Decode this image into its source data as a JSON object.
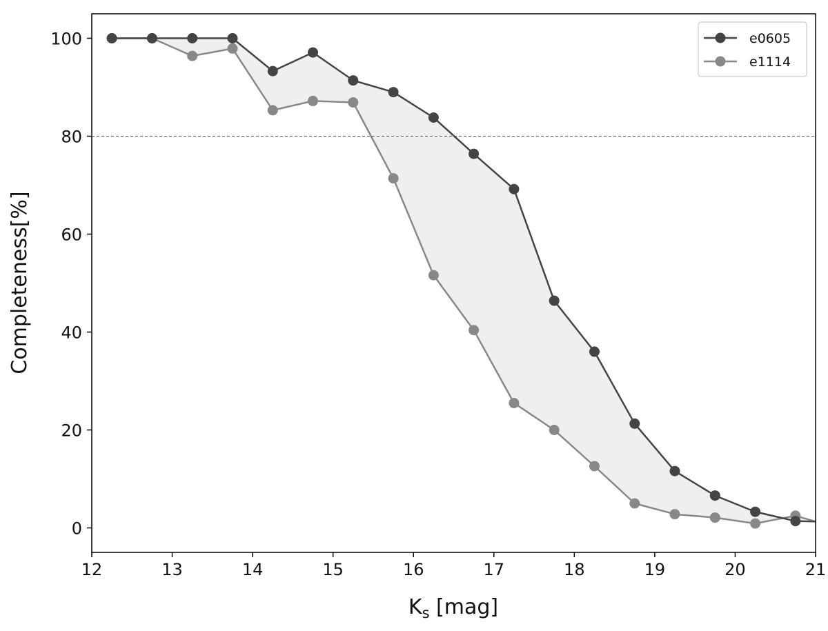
{
  "chart_data": {
    "type": "line",
    "title": "",
    "xlabel_main": "K",
    "xlabel_sub": "s",
    "xlabel_unit": " [mag]",
    "ylabel": "Completeness[%]",
    "xlim": [
      12,
      21
    ],
    "ylim": [
      -5,
      105
    ],
    "xticks": [
      12,
      13,
      14,
      15,
      16,
      17,
      18,
      19,
      20,
      21
    ],
    "yticks": [
      0,
      20,
      40,
      60,
      80,
      100
    ],
    "reference_line": {
      "y": 80,
      "style": "dashed"
    },
    "x": [
      12.25,
      12.75,
      13.25,
      13.75,
      14.25,
      14.75,
      15.25,
      15.75,
      16.25,
      16.75,
      17.25,
      17.75,
      18.25,
      18.75,
      19.25,
      19.75,
      20.25,
      20.75,
      21.0
    ],
    "series": [
      {
        "name": "e0605",
        "color": "#444444",
        "values": [
          100,
          100,
          100,
          100,
          93.3,
          97.1,
          91.4,
          89.0,
          83.8,
          76.4,
          69.2,
          46.4,
          36.0,
          21.3,
          11.6,
          6.6,
          3.3,
          1.4,
          1.3
        ]
      },
      {
        "name": "e1114",
        "color": "#888888",
        "values": [
          100,
          100,
          96.4,
          97.9,
          85.3,
          87.2,
          86.9,
          71.4,
          51.6,
          40.4,
          25.5,
          20.0,
          12.6,
          5.0,
          2.8,
          2.1,
          0.9,
          2.5,
          1.3
        ]
      }
    ],
    "fill_between": {
      "color": "#efefef"
    },
    "legend": {
      "position": "top-right",
      "entries": [
        "e0605",
        "e1114"
      ]
    }
  }
}
